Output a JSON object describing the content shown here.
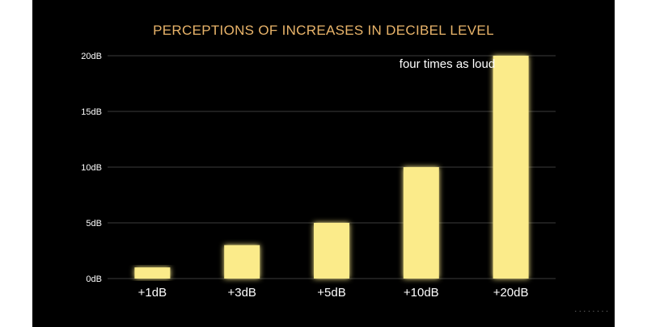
{
  "chart_data": {
    "type": "bar",
    "title": "PERCEPTIONS OF INCREASES IN DECIBEL LEVEL",
    "categories": [
      "+1dB",
      "+3dB",
      "+5dB",
      "+10dB",
      "+20dB"
    ],
    "values": [
      1,
      3,
      5,
      10,
      20
    ],
    "ylim": [
      0,
      20
    ],
    "yticks": [
      0,
      5,
      10,
      15,
      20
    ],
    "ytick_labels": [
      "0dB",
      "5dB",
      "10dB",
      "15dB",
      "20dB"
    ],
    "xlabel": "",
    "ylabel": "",
    "grid": true,
    "annotation": "four times as loud",
    "colors": {
      "background": "#000000",
      "bar": "#fbeb8a",
      "bar_glow": "#fff3a6",
      "grid": "#3c3c3c",
      "title": "#e9b46a",
      "text": "#ffffff"
    }
  }
}
